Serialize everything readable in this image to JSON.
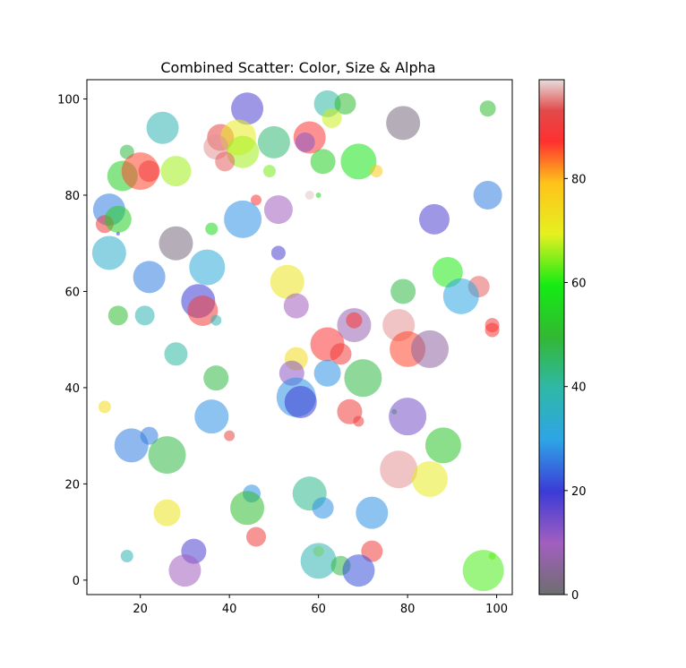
{
  "chart_data": {
    "type": "scatter",
    "title": "Combined Scatter: Color, Size & Alpha",
    "xlabel": "",
    "ylabel": "",
    "xlim": [
      8,
      103.5
    ],
    "ylim": [
      -3,
      104
    ],
    "xticks": [
      20,
      40,
      60,
      80,
      100
    ],
    "yticks": [
      0,
      20,
      40,
      60,
      80,
      100
    ],
    "grid": false,
    "colorbar": {
      "range": [
        0,
        99
      ],
      "ticks": [
        0,
        20,
        40,
        60,
        80
      ],
      "colormap": "nipy_spectral-like (grey → purple → blue → cyan → green → yellow → orange → red → pink)"
    },
    "alpha": 0.55,
    "points": [
      {
        "x": 44,
        "y": 98,
        "size": 36,
        "color": 18
      },
      {
        "x": 25,
        "y": 94,
        "size": 36,
        "color": 38
      },
      {
        "x": 62,
        "y": 99,
        "size": 30,
        "color": 40
      },
      {
        "x": 66,
        "y": 99,
        "size": 24,
        "color": 50
      },
      {
        "x": 63,
        "y": 96,
        "size": 22,
        "color": 68
      },
      {
        "x": 79,
        "y": 95,
        "size": 38,
        "color": 2
      },
      {
        "x": 98,
        "y": 98,
        "size": 18,
        "color": 50
      },
      {
        "x": 38,
        "y": 92,
        "size": 30,
        "color": 92
      },
      {
        "x": 42,
        "y": 92,
        "size": 40,
        "color": 70
      },
      {
        "x": 37,
        "y": 90,
        "size": 28,
        "color": 96
      },
      {
        "x": 43,
        "y": 89,
        "size": 36,
        "color": 66
      },
      {
        "x": 50,
        "y": 91,
        "size": 36,
        "color": 44
      },
      {
        "x": 58,
        "y": 92,
        "size": 36,
        "color": 88
      },
      {
        "x": 57,
        "y": 91,
        "size": 22,
        "color": 12
      },
      {
        "x": 61,
        "y": 87,
        "size": 28,
        "color": 54
      },
      {
        "x": 69,
        "y": 87,
        "size": 40,
        "color": 58
      },
      {
        "x": 17,
        "y": 89,
        "size": 16,
        "color": 48
      },
      {
        "x": 39,
        "y": 87,
        "size": 22,
        "color": 94
      },
      {
        "x": 16,
        "y": 84,
        "size": 34,
        "color": 54
      },
      {
        "x": 20,
        "y": 85,
        "size": 42,
        "color": 86
      },
      {
        "x": 22,
        "y": 85,
        "size": 24,
        "color": 90
      },
      {
        "x": 28,
        "y": 85,
        "size": 34,
        "color": 66
      },
      {
        "x": 49,
        "y": 85,
        "size": 14,
        "color": 64
      },
      {
        "x": 73,
        "y": 85,
        "size": 14,
        "color": 78
      },
      {
        "x": 98,
        "y": 80,
        "size": 32,
        "color": 26
      },
      {
        "x": 46,
        "y": 79,
        "size": 12,
        "color": 88
      },
      {
        "x": 58,
        "y": 80,
        "size": 10,
        "color": 98
      },
      {
        "x": 60,
        "y": 80,
        "size": 6,
        "color": 56
      },
      {
        "x": 13,
        "y": 77,
        "size": 36,
        "color": 26
      },
      {
        "x": 51,
        "y": 77,
        "size": 32,
        "color": 10
      },
      {
        "x": 12,
        "y": 74,
        "size": 20,
        "color": 90
      },
      {
        "x": 15,
        "y": 75,
        "size": 30,
        "color": 54
      },
      {
        "x": 15,
        "y": 72,
        "size": 4,
        "color": 20
      },
      {
        "x": 43,
        "y": 75,
        "size": 42,
        "color": 28
      },
      {
        "x": 36,
        "y": 73,
        "size": 14,
        "color": 56
      },
      {
        "x": 86,
        "y": 75,
        "size": 34,
        "color": 18
      },
      {
        "x": 28,
        "y": 70,
        "size": 38,
        "color": 2
      },
      {
        "x": 13,
        "y": 68,
        "size": 38,
        "color": 34
      },
      {
        "x": 51,
        "y": 68,
        "size": 16,
        "color": 18
      },
      {
        "x": 35,
        "y": 65,
        "size": 40,
        "color": 32
      },
      {
        "x": 89,
        "y": 64,
        "size": 34,
        "color": 60
      },
      {
        "x": 22,
        "y": 63,
        "size": 36,
        "color": 26
      },
      {
        "x": 53,
        "y": 62,
        "size": 38,
        "color": 72
      },
      {
        "x": 96,
        "y": 61,
        "size": 24,
        "color": 94
      },
      {
        "x": 79,
        "y": 60,
        "size": 28,
        "color": 48
      },
      {
        "x": 92,
        "y": 59,
        "size": 40,
        "color": 30
      },
      {
        "x": 33,
        "y": 58,
        "size": 38,
        "color": 20
      },
      {
        "x": 34,
        "y": 56,
        "size": 34,
        "color": 90
      },
      {
        "x": 55,
        "y": 57,
        "size": 28,
        "color": 10
      },
      {
        "x": 15,
        "y": 55,
        "size": 22,
        "color": 50
      },
      {
        "x": 21,
        "y": 55,
        "size": 22,
        "color": 38
      },
      {
        "x": 37,
        "y": 54,
        "size": 12,
        "color": 38
      },
      {
        "x": 68,
        "y": 53,
        "size": 38,
        "color": 8
      },
      {
        "x": 68,
        "y": 54,
        "size": 18,
        "color": 88
      },
      {
        "x": 78,
        "y": 53,
        "size": 36,
        "color": 96
      },
      {
        "x": 99,
        "y": 53,
        "size": 16,
        "color": 90
      },
      {
        "x": 99,
        "y": 52,
        "size": 16,
        "color": 88
      },
      {
        "x": 62,
        "y": 49,
        "size": 38,
        "color": 88
      },
      {
        "x": 65,
        "y": 47,
        "size": 24,
        "color": 90
      },
      {
        "x": 80,
        "y": 48,
        "size": 40,
        "color": 86
      },
      {
        "x": 85,
        "y": 48,
        "size": 42,
        "color": 6
      },
      {
        "x": 28,
        "y": 47,
        "size": 26,
        "color": 40
      },
      {
        "x": 55,
        "y": 46,
        "size": 26,
        "color": 74
      },
      {
        "x": 54,
        "y": 43,
        "size": 28,
        "color": 12
      },
      {
        "x": 62,
        "y": 43,
        "size": 30,
        "color": 28
      },
      {
        "x": 37,
        "y": 42,
        "size": 28,
        "color": 48
      },
      {
        "x": 70,
        "y": 42,
        "size": 42,
        "color": 48
      },
      {
        "x": 55,
        "y": 38,
        "size": 44,
        "color": 28
      },
      {
        "x": 56,
        "y": 37,
        "size": 36,
        "color": 20
      },
      {
        "x": 12,
        "y": 36,
        "size": 14,
        "color": 74
      },
      {
        "x": 67,
        "y": 35,
        "size": 28,
        "color": 90
      },
      {
        "x": 69,
        "y": 33,
        "size": 12,
        "color": 90
      },
      {
        "x": 77,
        "y": 35,
        "size": 6,
        "color": 50
      },
      {
        "x": 80,
        "y": 34,
        "size": 42,
        "color": 14
      },
      {
        "x": 36,
        "y": 34,
        "size": 38,
        "color": 28
      },
      {
        "x": 40,
        "y": 30,
        "size": 12,
        "color": 92
      },
      {
        "x": 22,
        "y": 30,
        "size": 20,
        "color": 26
      },
      {
        "x": 18,
        "y": 28,
        "size": 38,
        "color": 26
      },
      {
        "x": 26,
        "y": 26,
        "size": 42,
        "color": 48
      },
      {
        "x": 88,
        "y": 28,
        "size": 40,
        "color": 52
      },
      {
        "x": 78,
        "y": 23,
        "size": 42,
        "color": 96
      },
      {
        "x": 85,
        "y": 21,
        "size": 40,
        "color": 70
      },
      {
        "x": 45,
        "y": 18,
        "size": 20,
        "color": 28
      },
      {
        "x": 58,
        "y": 18,
        "size": 38,
        "color": 42
      },
      {
        "x": 61,
        "y": 15,
        "size": 24,
        "color": 28
      },
      {
        "x": 44,
        "y": 15,
        "size": 38,
        "color": 50
      },
      {
        "x": 26,
        "y": 14,
        "size": 30,
        "color": 72
      },
      {
        "x": 72,
        "y": 14,
        "size": 36,
        "color": 28
      },
      {
        "x": 46,
        "y": 9,
        "size": 22,
        "color": 90
      },
      {
        "x": 32,
        "y": 6,
        "size": 28,
        "color": 18
      },
      {
        "x": 72,
        "y": 6,
        "size": 24,
        "color": 90
      },
      {
        "x": 60,
        "y": 6,
        "size": 12,
        "color": 68
      },
      {
        "x": 17,
        "y": 5,
        "size": 14,
        "color": 38
      },
      {
        "x": 99,
        "y": 5,
        "size": 8,
        "color": 64
      },
      {
        "x": 60,
        "y": 4,
        "size": 40,
        "color": 38
      },
      {
        "x": 65,
        "y": 3,
        "size": 22,
        "color": 48
      },
      {
        "x": 69,
        "y": 2,
        "size": 36,
        "color": 22
      },
      {
        "x": 30,
        "y": 2,
        "size": 36,
        "color": 10
      },
      {
        "x": 97,
        "y": 2,
        "size": 46,
        "color": 62
      }
    ]
  }
}
